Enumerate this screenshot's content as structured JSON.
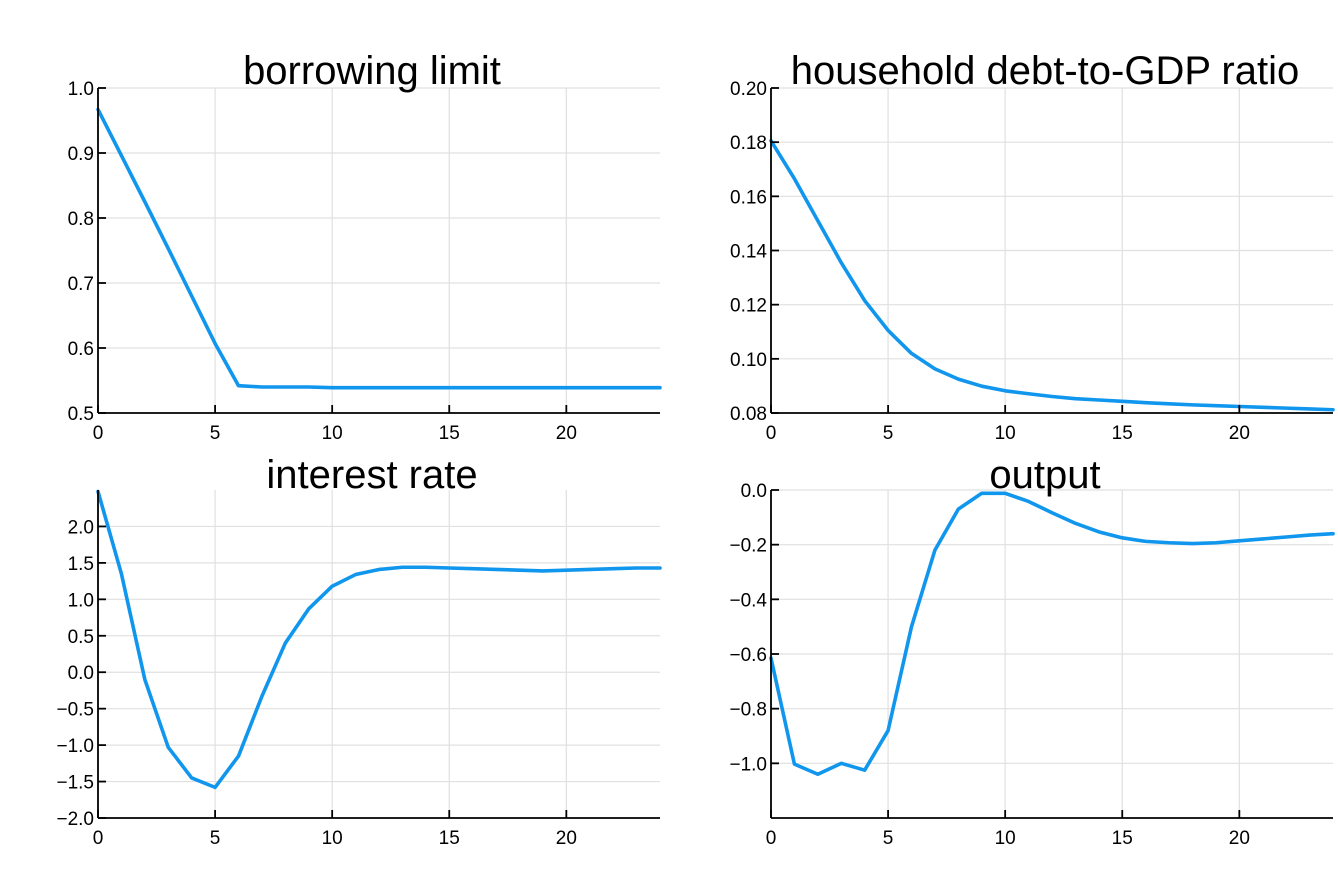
{
  "chart_data": [
    {
      "type": "line",
      "title": "borrowing limit",
      "xlim": [
        0,
        24
      ],
      "ylim": [
        0.5,
        1.0
      ],
      "xticks": [
        0,
        5,
        10,
        15,
        20
      ],
      "xtick_labels": [
        "0",
        "5",
        "10",
        "15",
        "20"
      ],
      "yticks": [
        0.5,
        0.6,
        0.7,
        0.8,
        0.9,
        1.0
      ],
      "ytick_labels": [
        "0.5",
        "0.6",
        "0.7",
        "0.8",
        "0.9",
        "1.0"
      ],
      "grid": true,
      "color": "#1196EE",
      "x": [
        0,
        1,
        2,
        3,
        4,
        5,
        6,
        7,
        8,
        9,
        10,
        11,
        12,
        13,
        14,
        15,
        16,
        17,
        18,
        19,
        20,
        21,
        22,
        23,
        24
      ],
      "y": [
        0.967,
        0.896,
        0.825,
        0.753,
        0.68,
        0.607,
        0.542,
        0.54,
        0.54,
        0.54,
        0.539,
        0.539,
        0.539,
        0.539,
        0.539,
        0.539,
        0.539,
        0.539,
        0.539,
        0.539,
        0.539,
        0.539,
        0.539,
        0.539,
        0.539
      ]
    },
    {
      "type": "line",
      "title": "household debt-to-GDP ratio",
      "xlim": [
        0,
        24
      ],
      "ylim": [
        0.08,
        0.2
      ],
      "xticks": [
        0,
        5,
        10,
        15,
        20
      ],
      "xtick_labels": [
        "0",
        "5",
        "10",
        "15",
        "20"
      ],
      "yticks": [
        0.08,
        0.1,
        0.12,
        0.14,
        0.16,
        0.18,
        0.2
      ],
      "ytick_labels": [
        "0.08",
        "0.10",
        "0.12",
        "0.14",
        "0.16",
        "0.18",
        "0.20"
      ],
      "grid": true,
      "color": "#1196EE",
      "x": [
        0,
        1,
        2,
        3,
        4,
        5,
        6,
        7,
        8,
        9,
        10,
        11,
        12,
        13,
        14,
        15,
        16,
        17,
        18,
        19,
        20,
        21,
        22,
        23,
        24
      ],
      "y": [
        0.1805,
        0.1665,
        0.151,
        0.1355,
        0.1215,
        0.1105,
        0.102,
        0.0963,
        0.0925,
        0.0899,
        0.0882,
        0.0871,
        0.0861,
        0.0853,
        0.0848,
        0.0843,
        0.0838,
        0.0834,
        0.083,
        0.0827,
        0.0824,
        0.0821,
        0.0818,
        0.0815,
        0.0812
      ]
    },
    {
      "type": "line",
      "title": "interest rate",
      "xlim": [
        0,
        24
      ],
      "ylim": [
        -2.0,
        2.5
      ],
      "xticks": [
        0,
        5,
        10,
        15,
        20
      ],
      "xtick_labels": [
        "0",
        "5",
        "10",
        "15",
        "20"
      ],
      "yticks": [
        -2.0,
        -1.5,
        -1.0,
        -0.5,
        0.0,
        0.5,
        1.0,
        1.5,
        2.0
      ],
      "ytick_labels": [
        "−2.0",
        "−1.5",
        "−1.0",
        "−0.5",
        "0.0",
        "0.5",
        "1.0",
        "1.5",
        "2.0"
      ],
      "grid": true,
      "color": "#1196EE",
      "x": [
        0,
        1,
        2,
        3,
        4,
        5,
        6,
        7,
        8,
        9,
        10,
        11,
        12,
        13,
        14,
        15,
        16,
        17,
        18,
        19,
        20,
        21,
        22,
        23,
        24
      ],
      "y": [
        2.48,
        1.35,
        -0.1,
        -1.03,
        -1.45,
        -1.58,
        -1.15,
        -0.33,
        0.4,
        0.87,
        1.18,
        1.34,
        1.41,
        1.44,
        1.44,
        1.43,
        1.42,
        1.41,
        1.4,
        1.39,
        1.4,
        1.41,
        1.42,
        1.43,
        1.43
      ]
    },
    {
      "type": "line",
      "title": "output",
      "xlim": [
        0,
        24
      ],
      "ylim": [
        -1.2,
        0.0
      ],
      "xticks": [
        0,
        5,
        10,
        15,
        20
      ],
      "xtick_labels": [
        "0",
        "5",
        "10",
        "15",
        "20"
      ],
      "yticks": [
        -1.0,
        -0.8,
        -0.6,
        -0.4,
        -0.2,
        0.0
      ],
      "ytick_labels": [
        "−1.0",
        "−0.8",
        "−0.6",
        "−0.4",
        "−0.2",
        "0.0"
      ],
      "grid": true,
      "color": "#1196EE",
      "x": [
        0,
        1,
        2,
        3,
        4,
        5,
        6,
        7,
        8,
        9,
        10,
        11,
        12,
        13,
        14,
        15,
        16,
        17,
        18,
        19,
        20,
        21,
        22,
        23,
        24
      ],
      "y": [
        -0.615,
        -1.003,
        -1.04,
        -1.0,
        -1.025,
        -0.88,
        -0.5,
        -0.22,
        -0.07,
        -0.012,
        -0.012,
        -0.042,
        -0.083,
        -0.122,
        -0.153,
        -0.175,
        -0.188,
        -0.193,
        -0.196,
        -0.193,
        -0.186,
        -0.179,
        -0.172,
        -0.165,
        -0.16
      ]
    }
  ]
}
